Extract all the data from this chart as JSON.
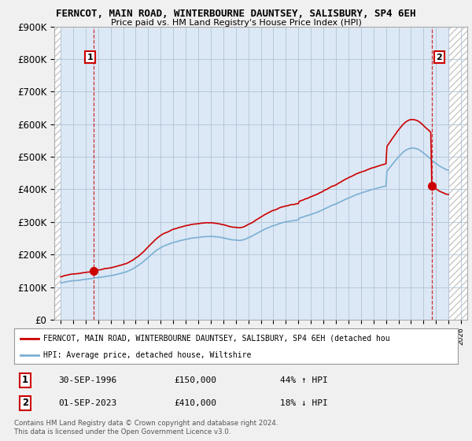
{
  "title1": "FERNCOT, MAIN ROAD, WINTERBOURNE DAUNTSEY, SALISBURY, SP4 6EH",
  "title2": "Price paid vs. HM Land Registry's House Price Index (HPI)",
  "ylim": [
    0,
    900000
  ],
  "yticks": [
    0,
    100000,
    200000,
    300000,
    400000,
    500000,
    600000,
    700000,
    800000,
    900000
  ],
  "ytick_labels": [
    "£0",
    "£100K",
    "£200K",
    "£300K",
    "£400K",
    "£500K",
    "£600K",
    "£700K",
    "£800K",
    "£900K"
  ],
  "sale1_year": 1996,
  "sale1_month": 9,
  "sale1_price": 150000,
  "sale2_year": 2023,
  "sale2_month": 9,
  "sale2_price": 410000,
  "hpi_color": "#7bafd4",
  "price_color": "#cc0000",
  "bg_color": "#f0f0f0",
  "plot_bg": "#dce8f5",
  "grid_color": "#b0c4d8",
  "hatch_color": "#c8c8c8",
  "legend_label1": "FERNCOT, MAIN ROAD, WINTERBOURNE DAUNTSEY, SALISBURY, SP4 6EH (detached hou",
  "legend_label2": "HPI: Average price, detached house, Wiltshire",
  "note1_num": "1",
  "note1_date": "30-SEP-1996",
  "note1_price": "£150,000",
  "note1_hpi": "44% ↑ HPI",
  "note2_num": "2",
  "note2_date": "01-SEP-2023",
  "note2_price": "£410,000",
  "note2_hpi": "18% ↓ HPI",
  "copyright": "Contains HM Land Registry data © Crown copyright and database right 2024.\nThis data is licensed under the Open Government Licence v3.0.",
  "xmin": 1993.5,
  "xmax": 2026.5,
  "data_xmin": 1994.0,
  "data_xmax": 2025.0
}
